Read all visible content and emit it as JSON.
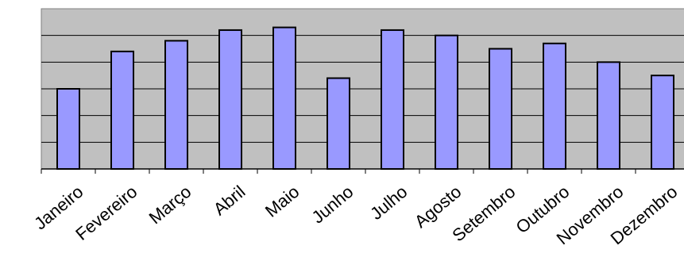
{
  "chart_data": {
    "type": "bar",
    "categories": [
      "Janeiro",
      "Fevereiro",
      "Março",
      "Abril",
      "Maio",
      "Junho",
      "Julho",
      "Agosto",
      "Setembro",
      "Outubro",
      "Novembro",
      "Dezembro"
    ],
    "values": [
      3.0,
      4.4,
      4.8,
      5.2,
      5.3,
      3.4,
      5.2,
      5.0,
      4.5,
      4.7,
      4.0,
      3.5
    ],
    "ylim": [
      0,
      6
    ],
    "yticks": 6,
    "grid": true,
    "legend": "none",
    "colors": {
      "bar_fill": "#9999ff",
      "bar_stroke": "#000000",
      "plot_background": "#c0c0c0",
      "gridline": "#000000"
    }
  }
}
